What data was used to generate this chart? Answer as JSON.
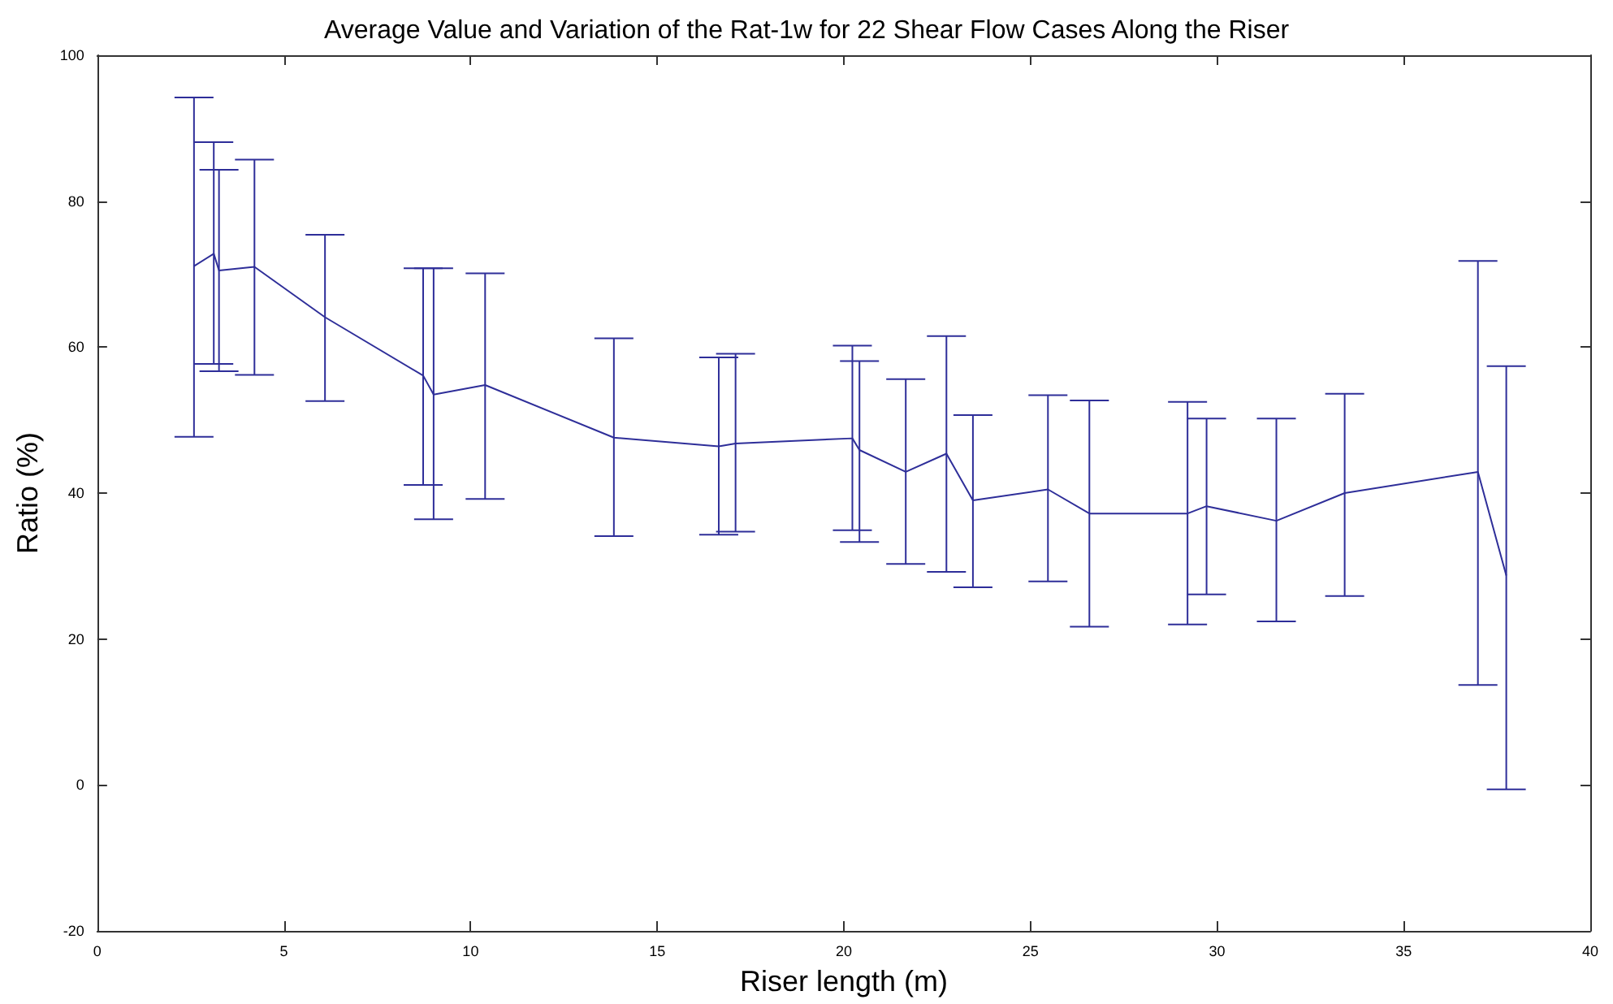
{
  "chart_data": {
    "type": "line",
    "title": "Average Value and Variation of the Rat-1w for 22 Shear Flow Cases Along the Riser",
    "xlabel": "Riser length (m)",
    "ylabel": "Ratio (%)",
    "xlim": [
      0,
      40
    ],
    "xticks": [
      0,
      5,
      10,
      15,
      20,
      25,
      30,
      35,
      40
    ],
    "ylim": [
      -20,
      100
    ],
    "yticks": [
      -20,
      0,
      20,
      40,
      60,
      80,
      100
    ],
    "grid": false,
    "marker": "none",
    "line_style": "solid",
    "series": [
      {
        "color": "#2e2e99",
        "x": [
          2.59,
          3.12,
          3.26,
          4.21,
          6.1,
          8.73,
          9.01,
          10.39,
          13.84,
          16.65,
          17.1,
          20.23,
          20.42,
          21.66,
          22.75,
          23.46,
          25.47,
          26.58,
          29.21,
          29.72,
          31.59,
          33.42,
          36.99,
          37.75
        ],
        "values": [
          71.1,
          72.8,
          70.5,
          71.0,
          64.1,
          56.1,
          53.5,
          54.8,
          47.6,
          46.4,
          46.8,
          47.5,
          45.9,
          42.9,
          45.4,
          39.0,
          40.5,
          37.2,
          37.2,
          38.2,
          36.2,
          40.0,
          42.9,
          28.7
        ],
        "errors": [
          [
            47.7,
            94.2
          ],
          [
            57.7,
            88.1
          ],
          [
            56.7,
            84.3
          ],
          [
            56.2,
            85.7
          ],
          [
            52.6,
            75.4
          ],
          [
            41.1,
            70.8
          ],
          [
            36.4,
            70.8
          ],
          [
            39.2,
            70.1
          ],
          [
            34.1,
            61.2
          ],
          [
            34.3,
            58.6
          ],
          [
            34.7,
            59.1
          ],
          [
            34.9,
            60.2
          ],
          [
            33.3,
            58.1
          ],
          [
            30.3,
            55.6
          ],
          [
            29.2,
            61.5
          ],
          [
            27.1,
            50.7
          ],
          [
            27.9,
            53.4
          ],
          [
            21.7,
            52.7
          ],
          [
            22.0,
            52.5
          ],
          [
            26.1,
            50.2
          ],
          [
            22.4,
            50.2
          ],
          [
            25.9,
            53.6
          ],
          [
            13.7,
            71.8
          ],
          [
            -0.6,
            57.4
          ]
        ]
      }
    ]
  }
}
